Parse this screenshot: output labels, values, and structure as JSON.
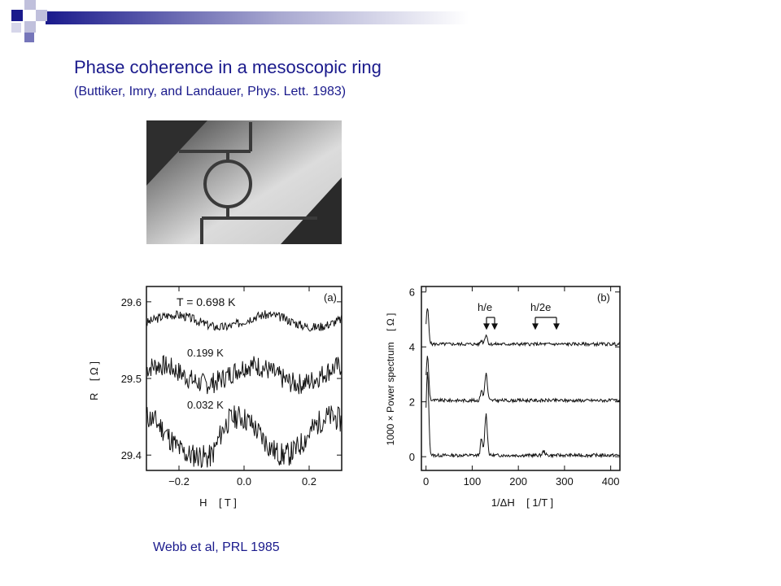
{
  "slide": {
    "title": "Phase coherence in a mesoscopic ring",
    "subtitle": "(Buttiker, Imry, and Landauer, Phys. Lett. 1983)",
    "credit": "Webb et al, PRL 1985",
    "accent_color": "#1a1a8c"
  },
  "chart_data": [
    {
      "type": "line",
      "panel_label": "(a)",
      "xlabel": "H    [ T ]",
      "ylabel": "R    [ Ω ]",
      "xlim": [
        -0.3,
        0.3
      ],
      "ylim": [
        29.38,
        29.62
      ],
      "xticks": [
        "−0.2",
        "0.0",
        "0.2"
      ],
      "yticks": [
        "29.6",
        "29.5",
        "29.4"
      ],
      "curve_labels": [
        "T = 0.698 K",
        "0.199 K",
        "0.032 K"
      ]
    },
    {
      "type": "line",
      "panel_label": "(b)",
      "xlabel": "1/ΔH    [ 1/T ]",
      "ylabel": "1000 × Power spectrum    [ Ω ]",
      "xlim": [
        -10,
        420
      ],
      "ylim": [
        -0.5,
        6.2
      ],
      "xticks": [
        "0",
        "100",
        "200",
        "300",
        "400"
      ],
      "yticks": [
        "6",
        "4",
        "2",
        "0"
      ],
      "annotations": [
        "h/e",
        "h/2e"
      ]
    }
  ]
}
